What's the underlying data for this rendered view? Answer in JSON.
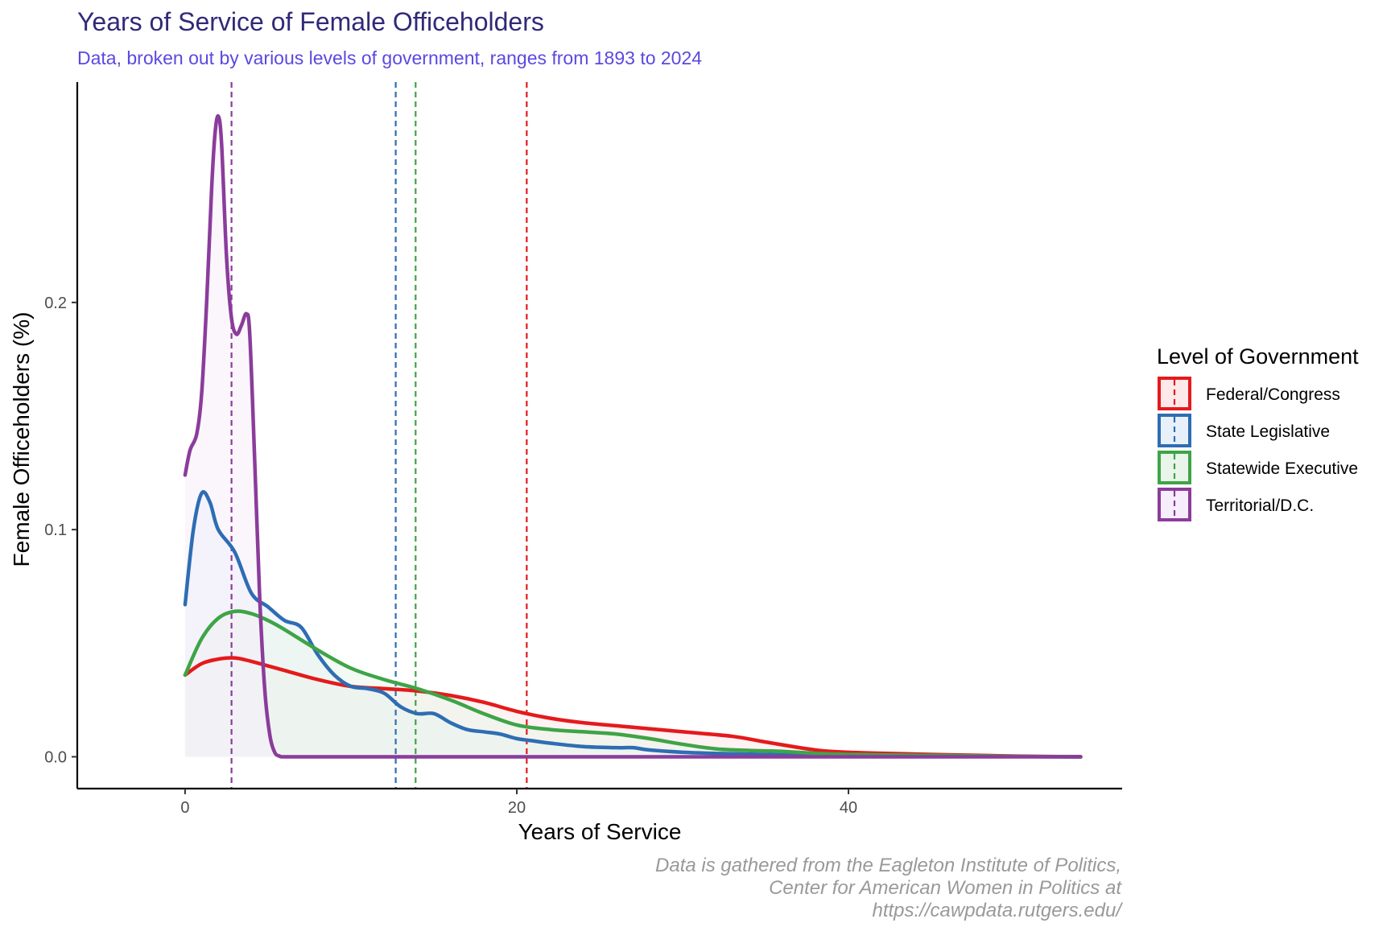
{
  "chart_data": {
    "type": "area",
    "title": "Years of Service of Female Officeholders",
    "subtitle": "Data, broken out by various levels of government, ranges from 1893 to 2024",
    "xlabel": "Years of Service",
    "ylabel": "Female Officeholders (%)",
    "xlim": [
      -6.5,
      56.5
    ],
    "ylim": [
      -0.014,
      0.297
    ],
    "xticks": [
      0,
      20,
      40
    ],
    "yticks": [
      0.0,
      0.1,
      0.2
    ],
    "xtick_labels": [
      "0",
      "20",
      "40"
    ],
    "ytick_labels": [
      "0.0",
      "0.1",
      "0.2"
    ],
    "legend_title": "Level of Government",
    "legend_position": "right",
    "grid": false,
    "caption": [
      "Data is gathered from the Eagleton Institute of Politics,",
      "Center for American Women in Politics at",
      "https://cawpdata.rutgers.edu/"
    ],
    "series": [
      {
        "name": "Federal/Congress",
        "color": "#e41a1c",
        "fill": "#fde8ea",
        "mean": 20.6,
        "x": [
          0,
          1,
          2,
          3,
          4,
          5,
          6,
          8,
          10,
          12,
          14,
          16,
          18,
          20,
          22,
          24,
          27,
          30,
          33,
          35,
          38,
          40,
          44,
          48,
          51,
          54
        ],
        "y": [
          0.036,
          0.041,
          0.043,
          0.0435,
          0.042,
          0.04,
          0.038,
          0.034,
          0.031,
          0.03,
          0.029,
          0.027,
          0.024,
          0.02,
          0.017,
          0.015,
          0.013,
          0.011,
          0.009,
          0.0065,
          0.003,
          0.002,
          0.0012,
          0.0006,
          0.0002,
          0.0
        ]
      },
      {
        "name": "State Legislative",
        "color": "#2e6db3",
        "fill": "#e8f1f9",
        "mean": 12.7,
        "x": [
          0,
          0.5,
          1,
          1.5,
          2,
          3,
          4,
          5,
          6,
          7,
          8,
          9,
          10,
          11,
          12,
          13,
          14,
          15,
          16,
          17,
          18,
          19,
          20,
          21,
          22,
          24,
          26,
          27,
          28,
          30,
          32,
          35,
          40,
          45,
          50,
          54
        ],
        "y": [
          0.067,
          0.1,
          0.116,
          0.112,
          0.1,
          0.09,
          0.072,
          0.066,
          0.06,
          0.057,
          0.045,
          0.036,
          0.031,
          0.03,
          0.028,
          0.022,
          0.019,
          0.019,
          0.015,
          0.012,
          0.011,
          0.01,
          0.008,
          0.007,
          0.006,
          0.0045,
          0.004,
          0.004,
          0.003,
          0.002,
          0.0015,
          0.001,
          0.0005,
          0.0002,
          0.0001,
          0.0
        ]
      },
      {
        "name": "Statewide Executive",
        "color": "#3ea447",
        "fill": "#e9f5ea",
        "mean": 13.9,
        "x": [
          0,
          1,
          2,
          3,
          4,
          5,
          6,
          8,
          10,
          12,
          14,
          16,
          18,
          20,
          22,
          24,
          26,
          28,
          30,
          32,
          34,
          36,
          38,
          40,
          44,
          48,
          51,
          54
        ],
        "y": [
          0.036,
          0.052,
          0.061,
          0.064,
          0.063,
          0.06,
          0.056,
          0.047,
          0.039,
          0.034,
          0.03,
          0.025,
          0.019,
          0.014,
          0.012,
          0.011,
          0.01,
          0.008,
          0.0055,
          0.0035,
          0.0028,
          0.0024,
          0.0015,
          0.001,
          0.0007,
          0.0004,
          0.0001,
          0.0
        ]
      },
      {
        "name": "Territorial/D.C.",
        "color": "#8b3c9b",
        "fill": "#f6eefa",
        "mean": 2.8,
        "x": [
          0,
          0.3,
          0.7,
          1,
          1.3,
          1.6,
          1.8,
          2,
          2.2,
          2.5,
          2.8,
          3.1,
          3.4,
          3.7,
          3.9,
          4.2,
          4.5,
          4.8,
          5.1,
          5.4,
          5.7,
          6,
          8,
          15,
          30,
          54
        ],
        "y": [
          0.124,
          0.135,
          0.142,
          0.16,
          0.2,
          0.25,
          0.274,
          0.282,
          0.27,
          0.22,
          0.193,
          0.186,
          0.19,
          0.195,
          0.186,
          0.13,
          0.07,
          0.03,
          0.01,
          0.002,
          0.0003,
          0.0,
          0.0,
          0.0,
          0.0,
          0.0
        ]
      }
    ]
  }
}
